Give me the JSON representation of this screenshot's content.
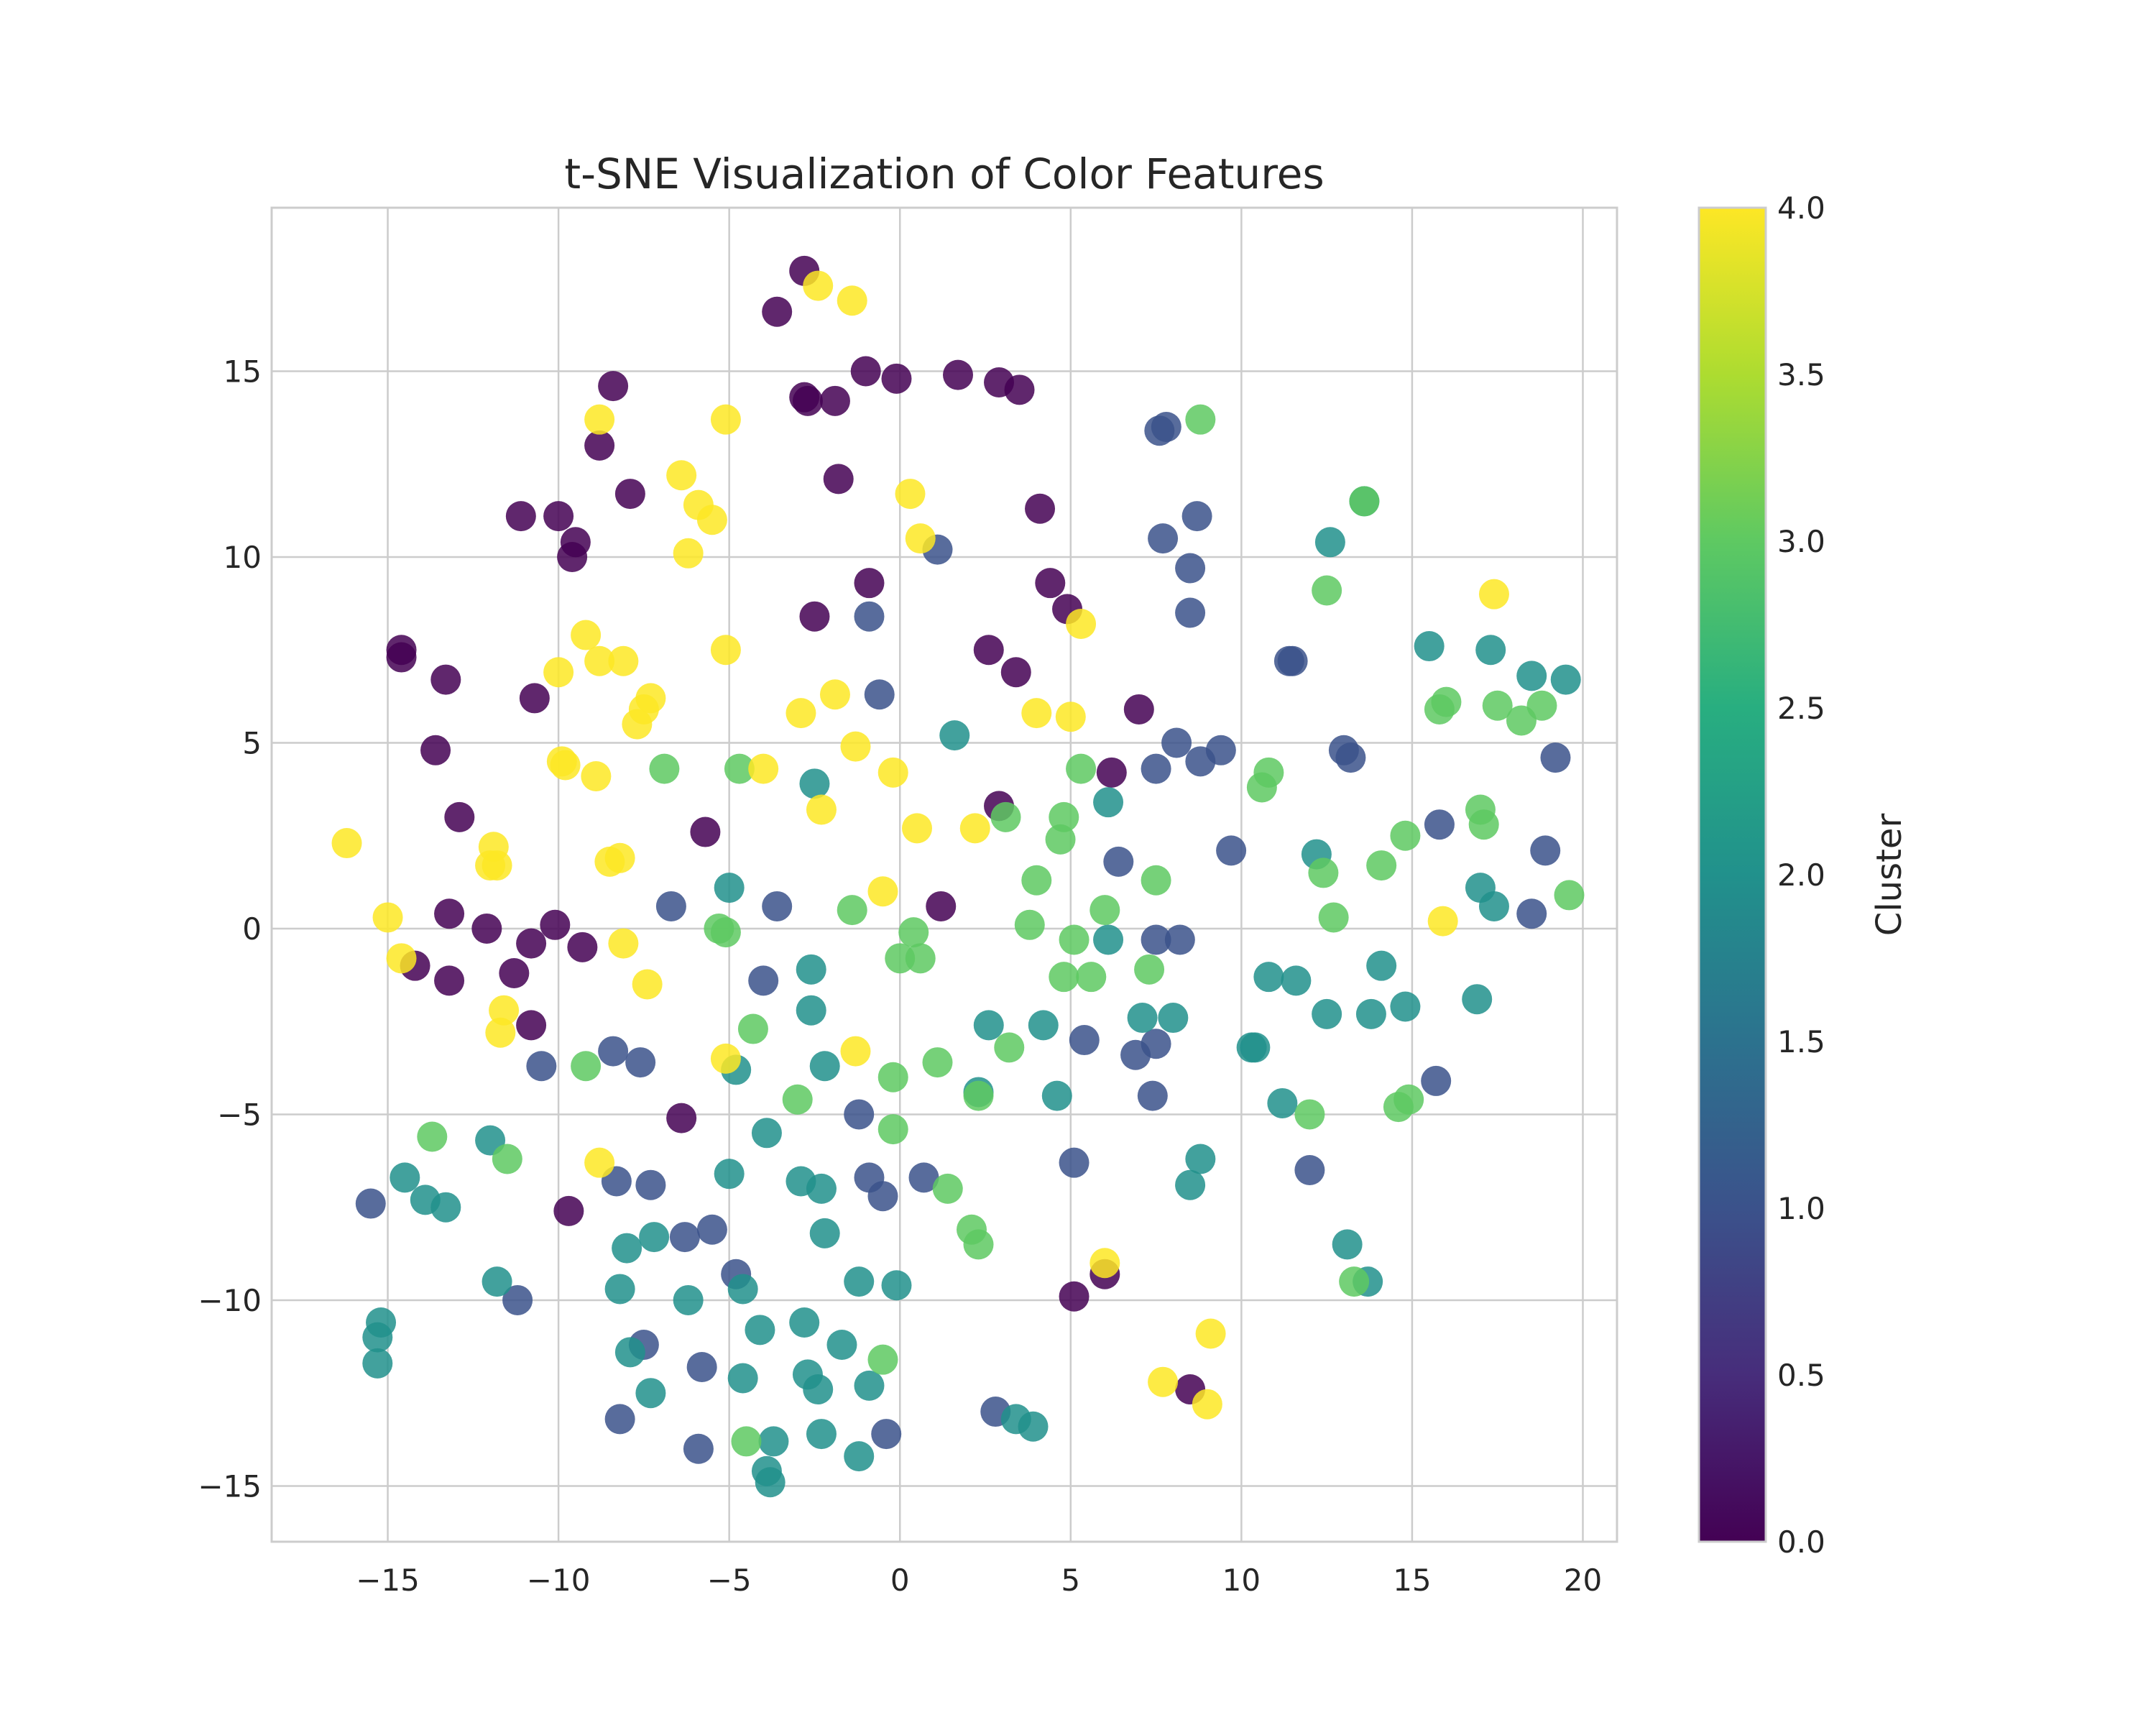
{
  "chart_data": {
    "type": "scatter",
    "title": "t-SNE Visualization of Color Features",
    "xlabel": "",
    "ylabel": "",
    "xlim": [
      -18.4,
      21.0
    ],
    "ylim": [
      -16.5,
      19.4
    ],
    "xticks": [
      -15,
      -10,
      -5,
      0,
      5,
      10,
      15,
      20
    ],
    "xtick_labels": [
      "−15",
      "−10",
      "−5",
      "0",
      "5",
      "10",
      "15",
      "20"
    ],
    "yticks": [
      -15,
      -10,
      -5,
      0,
      5,
      10,
      15
    ],
    "ytick_labels": [
      "−15",
      "−10",
      "−5",
      "0",
      "5",
      "10",
      "15"
    ],
    "grid": true,
    "colorbar": {
      "label": "Cluster",
      "range": [
        0.0,
        4.0
      ],
      "colormap": "viridis",
      "ticks": [
        0.0,
        0.5,
        1.0,
        1.5,
        2.0,
        2.5,
        3.0,
        3.5,
        4.0
      ],
      "tick_labels": [
        "0.0",
        "0.5",
        "1.0",
        "1.5",
        "2.0",
        "2.5",
        "3.0",
        "3.5",
        "4.0"
      ]
    },
    "cluster_colors": [
      "#440154",
      "#3b528b",
      "#21918c",
      "#5ec962",
      "#fde725"
    ],
    "points": [
      [
        -2.8,
        17.7,
        0
      ],
      [
        -3.6,
        16.6,
        0
      ],
      [
        -2.8,
        14.3,
        0
      ],
      [
        -2.7,
        14.2,
        0
      ],
      [
        -1.9,
        14.2,
        0
      ],
      [
        -1.0,
        15.0,
        0
      ],
      [
        -0.1,
        14.8,
        0
      ],
      [
        1.7,
        14.9,
        0
      ],
      [
        2.9,
        14.7,
        0
      ],
      [
        3.5,
        14.5,
        0
      ],
      [
        -8.4,
        14.6,
        0
      ],
      [
        -8.8,
        13.0,
        0
      ],
      [
        -7.9,
        11.7,
        0
      ],
      [
        -1.8,
        12.1,
        0
      ],
      [
        -11.1,
        11.1,
        0
      ],
      [
        -10.0,
        11.1,
        0
      ],
      [
        -9.5,
        10.4,
        0
      ],
      [
        -9.6,
        10.0,
        0
      ],
      [
        4.1,
        11.3,
        0
      ],
      [
        -0.9,
        9.3,
        0
      ],
      [
        4.4,
        9.3,
        0
      ],
      [
        4.9,
        8.6,
        0
      ],
      [
        -2.5,
        8.4,
        0
      ],
      [
        -14.6,
        7.5,
        0
      ],
      [
        -14.6,
        7.3,
        0
      ],
      [
        -13.3,
        6.7,
        0
      ],
      [
        -10.7,
        6.2,
        0
      ],
      [
        2.6,
        7.5,
        0
      ],
      [
        3.4,
        6.9,
        0
      ],
      [
        7.0,
        5.9,
        0
      ],
      [
        -13.6,
        4.8,
        0
      ],
      [
        6.2,
        4.2,
        0
      ],
      [
        -12.9,
        3.0,
        0
      ],
      [
        2.9,
        3.3,
        0
      ],
      [
        -5.7,
        2.6,
        0
      ],
      [
        -13.2,
        0.4,
        0
      ],
      [
        -12.1,
        0.0,
        0
      ],
      [
        -10.1,
        0.1,
        0
      ],
      [
        -10.8,
        -0.4,
        0
      ],
      [
        -9.3,
        -0.5,
        0
      ],
      [
        1.2,
        0.6,
        0
      ],
      [
        -14.2,
        -1.0,
        0
      ],
      [
        -11.3,
        -1.2,
        0
      ],
      [
        -13.2,
        -1.4,
        0
      ],
      [
        -10.8,
        -2.6,
        0
      ],
      [
        -6.4,
        -5.1,
        0
      ],
      [
        -9.7,
        -7.6,
        0
      ],
      [
        5.1,
        -9.9,
        0
      ],
      [
        6.0,
        -9.3,
        0
      ],
      [
        8.5,
        -12.4,
        0
      ],
      [
        7.6,
        13.4,
        1
      ],
      [
        7.8,
        13.5,
        1
      ],
      [
        7.7,
        10.5,
        1
      ],
      [
        8.7,
        11.1,
        1
      ],
      [
        1.1,
        10.2,
        1
      ],
      [
        8.5,
        9.7,
        1
      ],
      [
        8.5,
        8.5,
        1
      ],
      [
        -0.9,
        8.4,
        1
      ],
      [
        11.4,
        7.2,
        1
      ],
      [
        11.5,
        7.2,
        1
      ],
      [
        -0.6,
        6.3,
        1
      ],
      [
        8.1,
        5.0,
        1
      ],
      [
        9.4,
        4.8,
        1
      ],
      [
        7.5,
        4.3,
        1
      ],
      [
        8.8,
        4.5,
        1
      ],
      [
        13.0,
        4.8,
        1
      ],
      [
        13.2,
        4.6,
        1
      ],
      [
        19.2,
        4.6,
        1
      ],
      [
        15.8,
        2.8,
        1
      ],
      [
        9.7,
        2.1,
        1
      ],
      [
        18.9,
        2.1,
        1
      ],
      [
        6.4,
        1.8,
        1
      ],
      [
        -6.7,
        0.6,
        1
      ],
      [
        -3.6,
        0.6,
        1
      ],
      [
        18.5,
        0.4,
        1
      ],
      [
        7.5,
        -0.3,
        1
      ],
      [
        8.2,
        -0.3,
        1
      ],
      [
        -4.0,
        -1.4,
        1
      ],
      [
        5.4,
        -3.0,
        1
      ],
      [
        7.5,
        -3.1,
        1
      ],
      [
        6.9,
        -3.4,
        1
      ],
      [
        -8.4,
        -3.3,
        1
      ],
      [
        -7.6,
        -3.6,
        1
      ],
      [
        -10.5,
        -3.7,
        1
      ],
      [
        15.7,
        -4.1,
        1
      ],
      [
        7.4,
        -4.5,
        1
      ],
      [
        -1.2,
        -5.0,
        1
      ],
      [
        5.1,
        -6.3,
        1
      ],
      [
        12.0,
        -6.5,
        1
      ],
      [
        0.7,
        -6.7,
        1
      ],
      [
        -8.3,
        -6.8,
        1
      ],
      [
        -7.3,
        -6.9,
        1
      ],
      [
        -0.9,
        -6.7,
        1
      ],
      [
        -0.5,
        -7.2,
        1
      ],
      [
        -15.5,
        -7.4,
        1
      ],
      [
        -5.5,
        -8.1,
        1
      ],
      [
        -6.3,
        -8.3,
        1
      ],
      [
        -4.8,
        -9.3,
        1
      ],
      [
        -11.2,
        -10.0,
        1
      ],
      [
        -7.5,
        -11.2,
        1
      ],
      [
        -5.8,
        -11.8,
        1
      ],
      [
        2.8,
        -13.0,
        1
      ],
      [
        -8.2,
        -13.2,
        1
      ],
      [
        -0.4,
        -13.6,
        1
      ],
      [
        -5.9,
        -14.0,
        1
      ],
      [
        13.6,
        11.5,
        2
      ],
      [
        12.6,
        10.4,
        2
      ],
      [
        15.5,
        7.6,
        2
      ],
      [
        17.3,
        7.5,
        2
      ],
      [
        18.5,
        6.8,
        2
      ],
      [
        19.5,
        6.7,
        2
      ],
      [
        1.6,
        5.2,
        2
      ],
      [
        -2.5,
        3.9,
        2
      ],
      [
        6.1,
        3.4,
        2
      ],
      [
        12.2,
        2.0,
        2
      ],
      [
        -5.0,
        1.1,
        2
      ],
      [
        17.0,
        1.1,
        2
      ],
      [
        17.4,
        0.6,
        2
      ],
      [
        6.1,
        -0.3,
        2
      ],
      [
        14.1,
        -1.0,
        2
      ],
      [
        -2.6,
        -1.1,
        2
      ],
      [
        10.8,
        -1.3,
        2
      ],
      [
        11.6,
        -1.4,
        2
      ],
      [
        -2.6,
        -2.2,
        2
      ],
      [
        7.1,
        -2.4,
        2
      ],
      [
        8.0,
        -2.4,
        2
      ],
      [
        12.5,
        -2.3,
        2
      ],
      [
        13.8,
        -2.3,
        2
      ],
      [
        14.8,
        -2.1,
        2
      ],
      [
        16.9,
        -1.9,
        2
      ],
      [
        2.6,
        -2.6,
        2
      ],
      [
        4.2,
        -2.6,
        2
      ],
      [
        10.3,
        -3.2,
        2
      ],
      [
        10.4,
        -3.2,
        2
      ],
      [
        -2.2,
        -3.7,
        2
      ],
      [
        -4.8,
        -3.8,
        2
      ],
      [
        2.3,
        -4.4,
        2
      ],
      [
        4.6,
        -4.5,
        2
      ],
      [
        11.2,
        -4.7,
        2
      ],
      [
        -3.9,
        -5.5,
        2
      ],
      [
        -12.0,
        -5.7,
        2
      ],
      [
        8.8,
        -6.2,
        2
      ],
      [
        -14.5,
        -6.7,
        2
      ],
      [
        -5.0,
        -6.6,
        2
      ],
      [
        -2.9,
        -6.8,
        2
      ],
      [
        -2.3,
        -7.0,
        2
      ],
      [
        8.5,
        -6.9,
        2
      ],
      [
        -13.9,
        -7.3,
        2
      ],
      [
        -13.3,
        -7.5,
        2
      ],
      [
        -2.2,
        -8.2,
        2
      ],
      [
        -7.2,
        -8.3,
        2
      ],
      [
        -8.0,
        -8.6,
        2
      ],
      [
        13.1,
        -8.5,
        2
      ],
      [
        -11.8,
        -9.5,
        2
      ],
      [
        -8.2,
        -9.7,
        2
      ],
      [
        -6.2,
        -10.0,
        2
      ],
      [
        -4.6,
        -9.7,
        2
      ],
      [
        -1.2,
        -9.5,
        2
      ],
      [
        -0.1,
        -9.6,
        2
      ],
      [
        13.7,
        -9.5,
        2
      ],
      [
        -15.2,
        -10.6,
        2
      ],
      [
        -15.3,
        -11.0,
        2
      ],
      [
        -15.3,
        -11.7,
        2
      ],
      [
        -4.1,
        -10.8,
        2
      ],
      [
        -2.8,
        -10.6,
        2
      ],
      [
        -1.7,
        -11.2,
        2
      ],
      [
        -7.9,
        -11.4,
        2
      ],
      [
        -7.3,
        -12.5,
        2
      ],
      [
        -4.6,
        -12.1,
        2
      ],
      [
        -2.7,
        -12.0,
        2
      ],
      [
        -2.4,
        -12.4,
        2
      ],
      [
        -0.9,
        -12.3,
        2
      ],
      [
        3.4,
        -13.2,
        2
      ],
      [
        3.9,
        -13.4,
        2
      ],
      [
        -2.3,
        -13.6,
        2
      ],
      [
        -3.7,
        -13.8,
        2
      ],
      [
        -1.2,
        -14.2,
        2
      ],
      [
        -3.9,
        -14.6,
        2
      ],
      [
        -3.8,
        -14.9,
        2
      ],
      [
        8.8,
        13.7,
        3
      ],
      [
        13.6,
        11.5,
        3
      ],
      [
        12.5,
        9.1,
        3
      ],
      [
        15.8,
        5.9,
        3
      ],
      [
        16.0,
        6.1,
        3
      ],
      [
        17.5,
        6.0,
        3
      ],
      [
        18.2,
        5.6,
        3
      ],
      [
        18.8,
        6.0,
        3
      ],
      [
        10.8,
        4.2,
        3
      ],
      [
        10.6,
        3.8,
        3
      ],
      [
        5.3,
        4.3,
        3
      ],
      [
        -6.9,
        4.3,
        3
      ],
      [
        -4.7,
        4.3,
        3
      ],
      [
        4.8,
        3.0,
        3
      ],
      [
        3.1,
        3.0,
        3
      ],
      [
        4.7,
        2.4,
        3
      ],
      [
        17.0,
        3.2,
        3
      ],
      [
        17.1,
        2.8,
        3
      ],
      [
        14.8,
        2.5,
        3
      ],
      [
        14.1,
        1.7,
        3
      ],
      [
        12.4,
        1.5,
        3
      ],
      [
        4.0,
        1.3,
        3
      ],
      [
        7.5,
        1.3,
        3
      ],
      [
        19.6,
        0.9,
        3
      ],
      [
        -1.4,
        0.5,
        3
      ],
      [
        6.0,
        0.5,
        3
      ],
      [
        3.8,
        0.1,
        3
      ],
      [
        12.7,
        0.3,
        3
      ],
      [
        -5.3,
        0.0,
        3
      ],
      [
        -5.1,
        -0.1,
        3
      ],
      [
        0.4,
        -0.1,
        3
      ],
      [
        5.1,
        -0.3,
        3
      ],
      [
        0.0,
        -0.8,
        3
      ],
      [
        0.6,
        -0.8,
        3
      ],
      [
        7.3,
        -1.1,
        3
      ],
      [
        4.8,
        -1.3,
        3
      ],
      [
        5.6,
        -1.3,
        3
      ],
      [
        -4.3,
        -2.7,
        3
      ],
      [
        3.2,
        -3.2,
        3
      ],
      [
        1.1,
        -3.6,
        3
      ],
      [
        -9.2,
        -3.7,
        3
      ],
      [
        -0.2,
        -4.0,
        3
      ],
      [
        2.3,
        -4.5,
        3
      ],
      [
        -3.0,
        -4.6,
        3
      ],
      [
        14.6,
        -4.8,
        3
      ],
      [
        14.9,
        -4.6,
        3
      ],
      [
        12.0,
        -5.0,
        3
      ],
      [
        -13.7,
        -5.6,
        3
      ],
      [
        -11.5,
        -6.2,
        3
      ],
      [
        -0.2,
        -5.4,
        3
      ],
      [
        1.4,
        -7.0,
        3
      ],
      [
        2.1,
        -8.1,
        3
      ],
      [
        2.3,
        -8.5,
        3
      ],
      [
        13.3,
        -9.5,
        3
      ],
      [
        -0.5,
        -11.6,
        3
      ],
      [
        -4.5,
        -13.8,
        3
      ],
      [
        -2.4,
        17.3,
        4
      ],
      [
        -1.4,
        16.9,
        4
      ],
      [
        -8.8,
        13.7,
        4
      ],
      [
        -5.1,
        13.7,
        4
      ],
      [
        -6.4,
        12.2,
        4
      ],
      [
        -5.9,
        11.4,
        4
      ],
      [
        -5.5,
        11.0,
        4
      ],
      [
        0.3,
        11.7,
        4
      ],
      [
        0.6,
        10.5,
        4
      ],
      [
        -6.2,
        10.1,
        4
      ],
      [
        17.4,
        9.0,
        4
      ],
      [
        -9.2,
        7.9,
        4
      ],
      [
        -8.8,
        7.2,
        4
      ],
      [
        -8.1,
        7.2,
        4
      ],
      [
        -10.0,
        6.9,
        4
      ],
      [
        -5.1,
        7.5,
        4
      ],
      [
        5.3,
        8.2,
        4
      ],
      [
        -7.3,
        6.2,
        4
      ],
      [
        -7.5,
        5.9,
        4
      ],
      [
        -7.7,
        5.5,
        4
      ],
      [
        -2.9,
        5.8,
        4
      ],
      [
        -1.9,
        6.3,
        4
      ],
      [
        4.0,
        5.8,
        4
      ],
      [
        5.0,
        5.7,
        4
      ],
      [
        -1.3,
        4.9,
        4
      ],
      [
        -9.9,
        4.5,
        4
      ],
      [
        -9.8,
        4.4,
        4
      ],
      [
        -8.9,
        4.1,
        4
      ],
      [
        -4.0,
        4.3,
        4
      ],
      [
        -0.2,
        4.2,
        4
      ],
      [
        -2.3,
        3.2,
        4
      ],
      [
        0.5,
        2.7,
        4
      ],
      [
        2.2,
        2.7,
        4
      ],
      [
        -16.2,
        2.3,
        4
      ],
      [
        -11.9,
        2.2,
        4
      ],
      [
        -12.0,
        1.7,
        4
      ],
      [
        -11.8,
        1.7,
        4
      ],
      [
        -8.5,
        1.8,
        4
      ],
      [
        -8.2,
        1.9,
        4
      ],
      [
        -0.5,
        1.0,
        4
      ],
      [
        -15.0,
        0.3,
        4
      ],
      [
        15.9,
        0.2,
        4
      ],
      [
        -8.1,
        -0.4,
        4
      ],
      [
        -14.6,
        -0.8,
        4
      ],
      [
        -7.4,
        -1.5,
        4
      ],
      [
        -11.6,
        -2.2,
        4
      ],
      [
        -11.7,
        -2.8,
        4
      ],
      [
        -1.3,
        -3.3,
        4
      ],
      [
        -5.1,
        -3.5,
        4
      ],
      [
        -8.8,
        -6.3,
        4
      ],
      [
        6.0,
        -9.0,
        4
      ],
      [
        9.1,
        -10.9,
        4
      ],
      [
        7.7,
        -12.2,
        4
      ],
      [
        9.0,
        -12.8,
        4
      ]
    ]
  }
}
